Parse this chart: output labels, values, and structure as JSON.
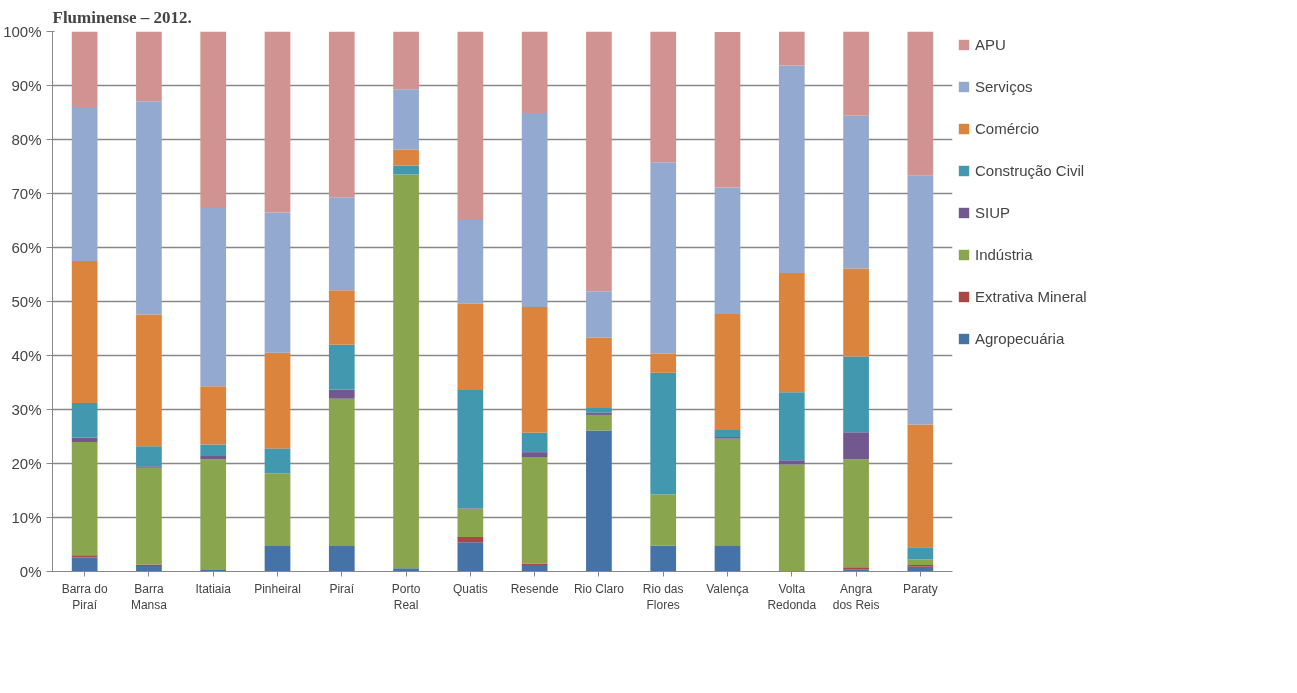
{
  "chart_data": {
    "type": "bar",
    "stacked": true,
    "title": "Fluminense – 2012.",
    "categories": [
      "Barra do\nPiraí",
      "Barra\nMansa",
      "Itatiaia",
      "Pinheiral",
      "Piraí",
      "Porto\nReal",
      "Quatis",
      "Resende",
      "Rio Claro",
      "Rio das\nFlores",
      "Valença",
      "Volta\nRedonda",
      "Angra\ndos Reis",
      "Paraty"
    ],
    "series": [
      {
        "name": "Agropecuária",
        "color": "#4572a7",
        "values": [
          2.6,
          1.0,
          0.3,
          4.7,
          4.7,
          0.6,
          5.4,
          1.2,
          26.1,
          4.8,
          4.7,
          0,
          0.4,
          0.9
        ]
      },
      {
        "name": "Extrativa Mineral",
        "color": "#aa4643",
        "values": [
          0.4,
          0.3,
          0,
          0,
          0,
          0,
          1.0,
          0.3,
          0,
          0,
          0,
          0,
          0.4,
          0.3
        ]
      },
      {
        "name": "Indústria",
        "color": "#89a54e",
        "values": [
          21.0,
          17.9,
          20.5,
          13.5,
          27.3,
          72.9,
          5.2,
          19.7,
          2.9,
          9.5,
          19.9,
          19.8,
          20.0,
          1.0
        ]
      },
      {
        "name": "SIUP",
        "color": "#71588f",
        "values": [
          0.8,
          0.3,
          0.6,
          0,
          1.7,
          0,
          0.1,
          0.9,
          0.4,
          0,
          0.3,
          0.8,
          5.0,
          0
        ]
      },
      {
        "name": "Construção Civil",
        "color": "#4198af",
        "values": [
          6.4,
          3.7,
          2.1,
          4.6,
          8.3,
          1.7,
          21.9,
          3.6,
          0.9,
          22.5,
          1.3,
          12.6,
          14.0,
          2.3
        ]
      },
      {
        "name": "Comércio",
        "color": "#db843d",
        "values": [
          26.3,
          24.4,
          10.8,
          17.7,
          10.1,
          2.9,
          16.0,
          23.3,
          13.0,
          3.6,
          21.5,
          22.1,
          16.3,
          22.7
        ]
      },
      {
        "name": "Serviços",
        "color": "#93a9cf",
        "values": [
          28.5,
          39.5,
          33.0,
          26.0,
          17.2,
          11.2,
          15.5,
          35.9,
          8.6,
          35.4,
          23.4,
          38.4,
          28.3,
          46.1
        ]
      },
      {
        "name": "APU",
        "color": "#d19392",
        "values": [
          14.0,
          12.9,
          32.7,
          33.5,
          30.7,
          10.7,
          34.9,
          15.1,
          48.1,
          24.2,
          28.8,
          6.3,
          15.6,
          26.7
        ]
      }
    ],
    "ylim": [
      0,
      100
    ],
    "yticks": [
      {
        "value": 0,
        "label": "0%"
      },
      {
        "value": 10,
        "label": "10%"
      },
      {
        "value": 20,
        "label": "20%"
      },
      {
        "value": 30,
        "label": "30%"
      },
      {
        "value": 40,
        "label": "40%"
      },
      {
        "value": 50,
        "label": "50%"
      },
      {
        "value": 60,
        "label": "60%"
      },
      {
        "value": 70,
        "label": "70%"
      },
      {
        "value": 80,
        "label": "80%"
      },
      {
        "value": 90,
        "label": "90%"
      },
      {
        "value": 100,
        "label": "100%"
      }
    ],
    "grid": "y",
    "legend": "right"
  }
}
